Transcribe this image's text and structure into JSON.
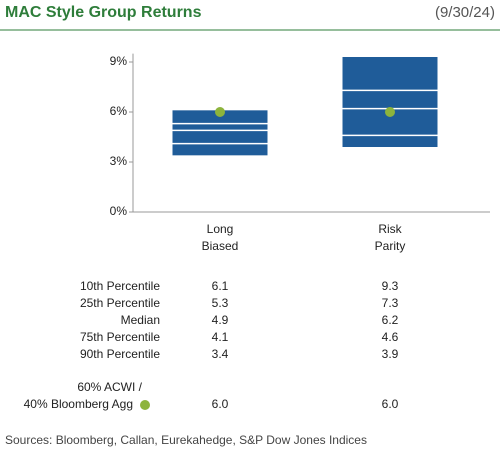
{
  "chart_data": {
    "type": "box",
    "title": "MAC Style Group Returns",
    "date": "(9/30/24)",
    "categories": [
      "Long Biased",
      "Risk Parity"
    ],
    "series": [
      {
        "name": "10th Percentile",
        "values": [
          6.1,
          9.3
        ]
      },
      {
        "name": "25th Percentile",
        "values": [
          5.3,
          7.3
        ]
      },
      {
        "name": "Median",
        "values": [
          4.9,
          6.2
        ]
      },
      {
        "name": "75th Percentile",
        "values": [
          4.1,
          4.6
        ]
      },
      {
        "name": "90th Percentile",
        "values": [
          3.4,
          3.9
        ]
      }
    ],
    "box_color": "#1f5c99",
    "benchmark": {
      "name": [
        "60% ACWI /",
        "40% Bloomberg Agg"
      ],
      "color": "#8db43c",
      "values": [
        6.0,
        6.0
      ],
      "value_labels": [
        "6.0",
        "6.0"
      ]
    },
    "ylim": [
      0,
      9.5
    ],
    "yticks": [
      {
        "value": 0,
        "label": "0%"
      },
      {
        "value": 3,
        "label": "3%"
      },
      {
        "value": 6,
        "label": "6%"
      },
      {
        "value": 9,
        "label": "9%"
      }
    ],
    "source": "Sources: Bloomberg, Callan, Eurekahedge, S&P Dow Jones Indices"
  }
}
